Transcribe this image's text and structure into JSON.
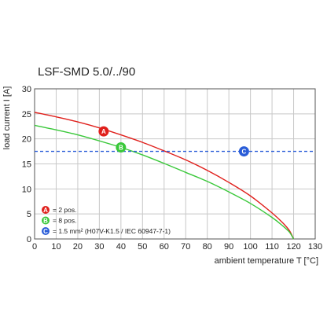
{
  "chart_data": {
    "type": "line",
    "title": "LSF-SMD 5.0/../90",
    "xlabel": "ambient temperature T [°C]",
    "ylabel": "load current I [A]",
    "xlim": [
      0,
      130
    ],
    "ylim": [
      0,
      30
    ],
    "x_ticks": [
      "0",
      "10",
      "20",
      "30",
      "40",
      "50",
      "60",
      "70",
      "80",
      "90",
      "100",
      "110",
      "120",
      "130"
    ],
    "y_ticks": [
      "0",
      "5",
      "10",
      "15",
      "20",
      "25",
      "30"
    ],
    "grid": true,
    "series": [
      {
        "marker": "A",
        "color": "#e0201c",
        "x": [
          0,
          10,
          20,
          30,
          40,
          50,
          60,
          70,
          80,
          90,
          100,
          110,
          115,
          118,
          120
        ],
        "y": [
          25.3,
          24.4,
          23.4,
          22.2,
          20.8,
          19.3,
          17.6,
          15.8,
          13.7,
          11.3,
          8.6,
          5.2,
          3.2,
          1.7,
          0
        ]
      },
      {
        "marker": "B",
        "color": "#3ac83a",
        "x": [
          0,
          10,
          20,
          30,
          40,
          50,
          60,
          70,
          80,
          90,
          100,
          110,
          115,
          118,
          120
        ],
        "y": [
          22.7,
          21.8,
          20.8,
          19.6,
          18.3,
          16.8,
          15.1,
          13.3,
          11.5,
          9.4,
          7.1,
          4.3,
          2.6,
          1.4,
          0
        ]
      },
      {
        "marker": "C",
        "color": "#2a5dd8",
        "style": "dashed",
        "x": [
          0,
          130
        ],
        "y": [
          17.5,
          17.5
        ]
      }
    ],
    "markers": [
      {
        "letter": "A",
        "color": "#e0201c",
        "x": 32,
        "y": 21.5
      },
      {
        "letter": "B",
        "color": "#3ac83a",
        "x": 40,
        "y": 18.3
      },
      {
        "letter": "C",
        "color": "#2a5dd8",
        "x": 97,
        "y": 17.5
      }
    ],
    "legend": {
      "placement": "bottom-left",
      "items": [
        {
          "letter": "A",
          "color": "#e0201c",
          "text": "= 2 pos."
        },
        {
          "letter": "B",
          "color": "#3ac83a",
          "text": "= 8 pos."
        },
        {
          "letter": "C",
          "color": "#2a5dd8",
          "text": "= 1.5 mm² (H07V-K1.5 / IEC 60947-7-1)"
        }
      ]
    }
  }
}
